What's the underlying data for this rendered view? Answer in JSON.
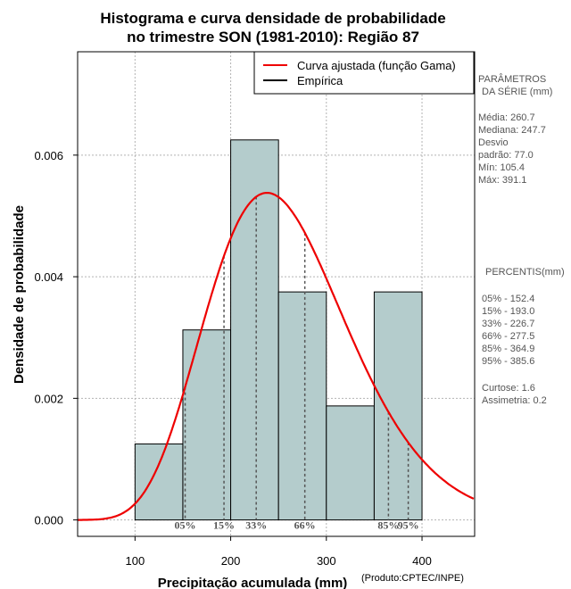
{
  "chart_data": {
    "type": "histogram",
    "title_lines": [
      "Histograma e curva densidade de probabilidade",
      "no trimestre SON (1981-2010): Região 87"
    ],
    "xlabel": "Precipitação acumulada (mm)",
    "ylabel": "Densidade de probabilidade",
    "credit": "(Produto:CPTEC/INPE)",
    "xlim": [
      40,
      455
    ],
    "ylim": [
      -0.00027,
      0.0077
    ],
    "x_ticks": [
      100,
      200,
      300,
      400
    ],
    "x_tick_labels": [
      "100",
      "200",
      "300",
      "400"
    ],
    "y_ticks": [
      0.0,
      0.002,
      0.004,
      0.006
    ],
    "y_tick_labels": [
      "0.000",
      "0.002",
      "0.004",
      "0.006"
    ],
    "grid": true,
    "bins": [
      {
        "start": 100,
        "end": 150,
        "density": 0.00125
      },
      {
        "start": 150,
        "end": 200,
        "density": 0.003125
      },
      {
        "start": 200,
        "end": 250,
        "density": 0.00625
      },
      {
        "start": 250,
        "end": 300,
        "density": 0.00375
      },
      {
        "start": 300,
        "end": 350,
        "density": 0.001875
      },
      {
        "start": 350,
        "end": 400,
        "density": 0.00375
      }
    ],
    "bar_color": "#b4cccc",
    "curve": {
      "name": "Curva ajustada (função Gama)",
      "color": "#ee0000",
      "mean": 260.7,
      "sd": 77.0
    },
    "legend": {
      "position": "top-right",
      "items": [
        {
          "label": "Curva ajustada (função Gama)",
          "color": "#ee0000"
        },
        {
          "label": "Empírica",
          "color": "#000000"
        }
      ]
    },
    "percentile_markers": [
      {
        "label": "05%",
        "value": 152.4
      },
      {
        "label": "15%",
        "value": 193.0
      },
      {
        "label": "33%",
        "value": 226.7
      },
      {
        "label": "66%",
        "value": 277.5
      },
      {
        "label": "85%",
        "value": 364.9
      },
      {
        "label": "95%",
        "value": 385.6
      }
    ]
  },
  "side_panel": {
    "parametros_title": [
      "PARÂMETROS",
      "DA SÉRIE (mm)"
    ],
    "stats": [
      "Média:  260.7",
      "Mediana:  247.7",
      "Desvio",
      "padrão:  77.0",
      "Mín:  105.4",
      "Máx:  391.1"
    ],
    "percentis_title": "PERCENTIS(mm)",
    "percentis": [
      "05% -  152.4",
      "15% -  193.0",
      "33% -  226.7",
      "66% -  277.5",
      "85% -  364.9",
      "95% -  385.6"
    ],
    "shape": [
      "Curtose:  1.6",
      "Assimetria:  0.2"
    ]
  }
}
